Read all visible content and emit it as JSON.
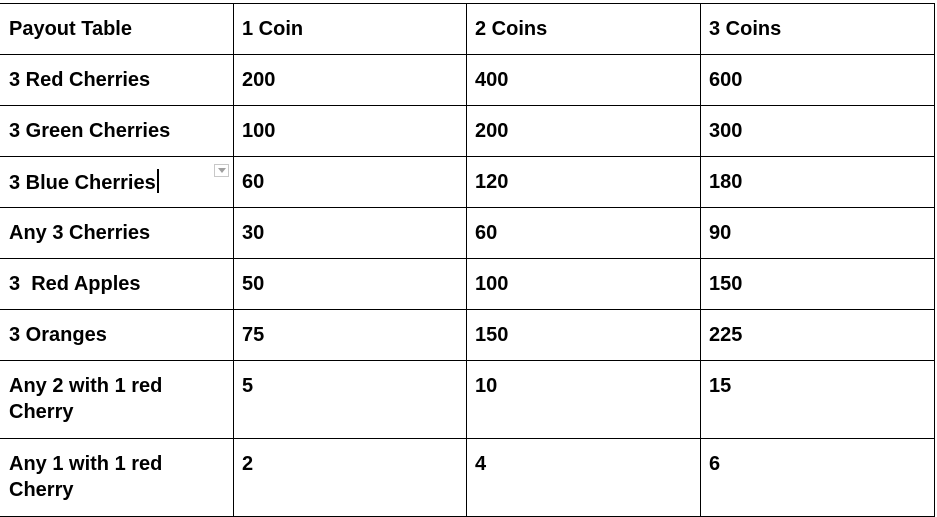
{
  "table": {
    "headers": [
      "Payout Table",
      "1 Coin",
      "2 Coins",
      "3 Coins"
    ],
    "rows": [
      [
        "3 Red Cherries",
        "200",
        "400",
        "600"
      ],
      [
        "3 Green Cherries",
        "100",
        "200",
        "300"
      ],
      [
        "3 Blue Cherries",
        "60",
        "120",
        "180"
      ],
      [
        "Any 3 Cherries",
        "30",
        "60",
        "90"
      ],
      [
        "3  Red Apples",
        "50",
        "100",
        "150"
      ],
      [
        "3 Oranges",
        "75",
        "150",
        "225"
      ],
      [
        "Any 2 with 1 red Cherry",
        "5",
        "10",
        "15"
      ],
      [
        "Any 1 with 1 red Cherry",
        "2",
        "4",
        "6"
      ]
    ]
  }
}
